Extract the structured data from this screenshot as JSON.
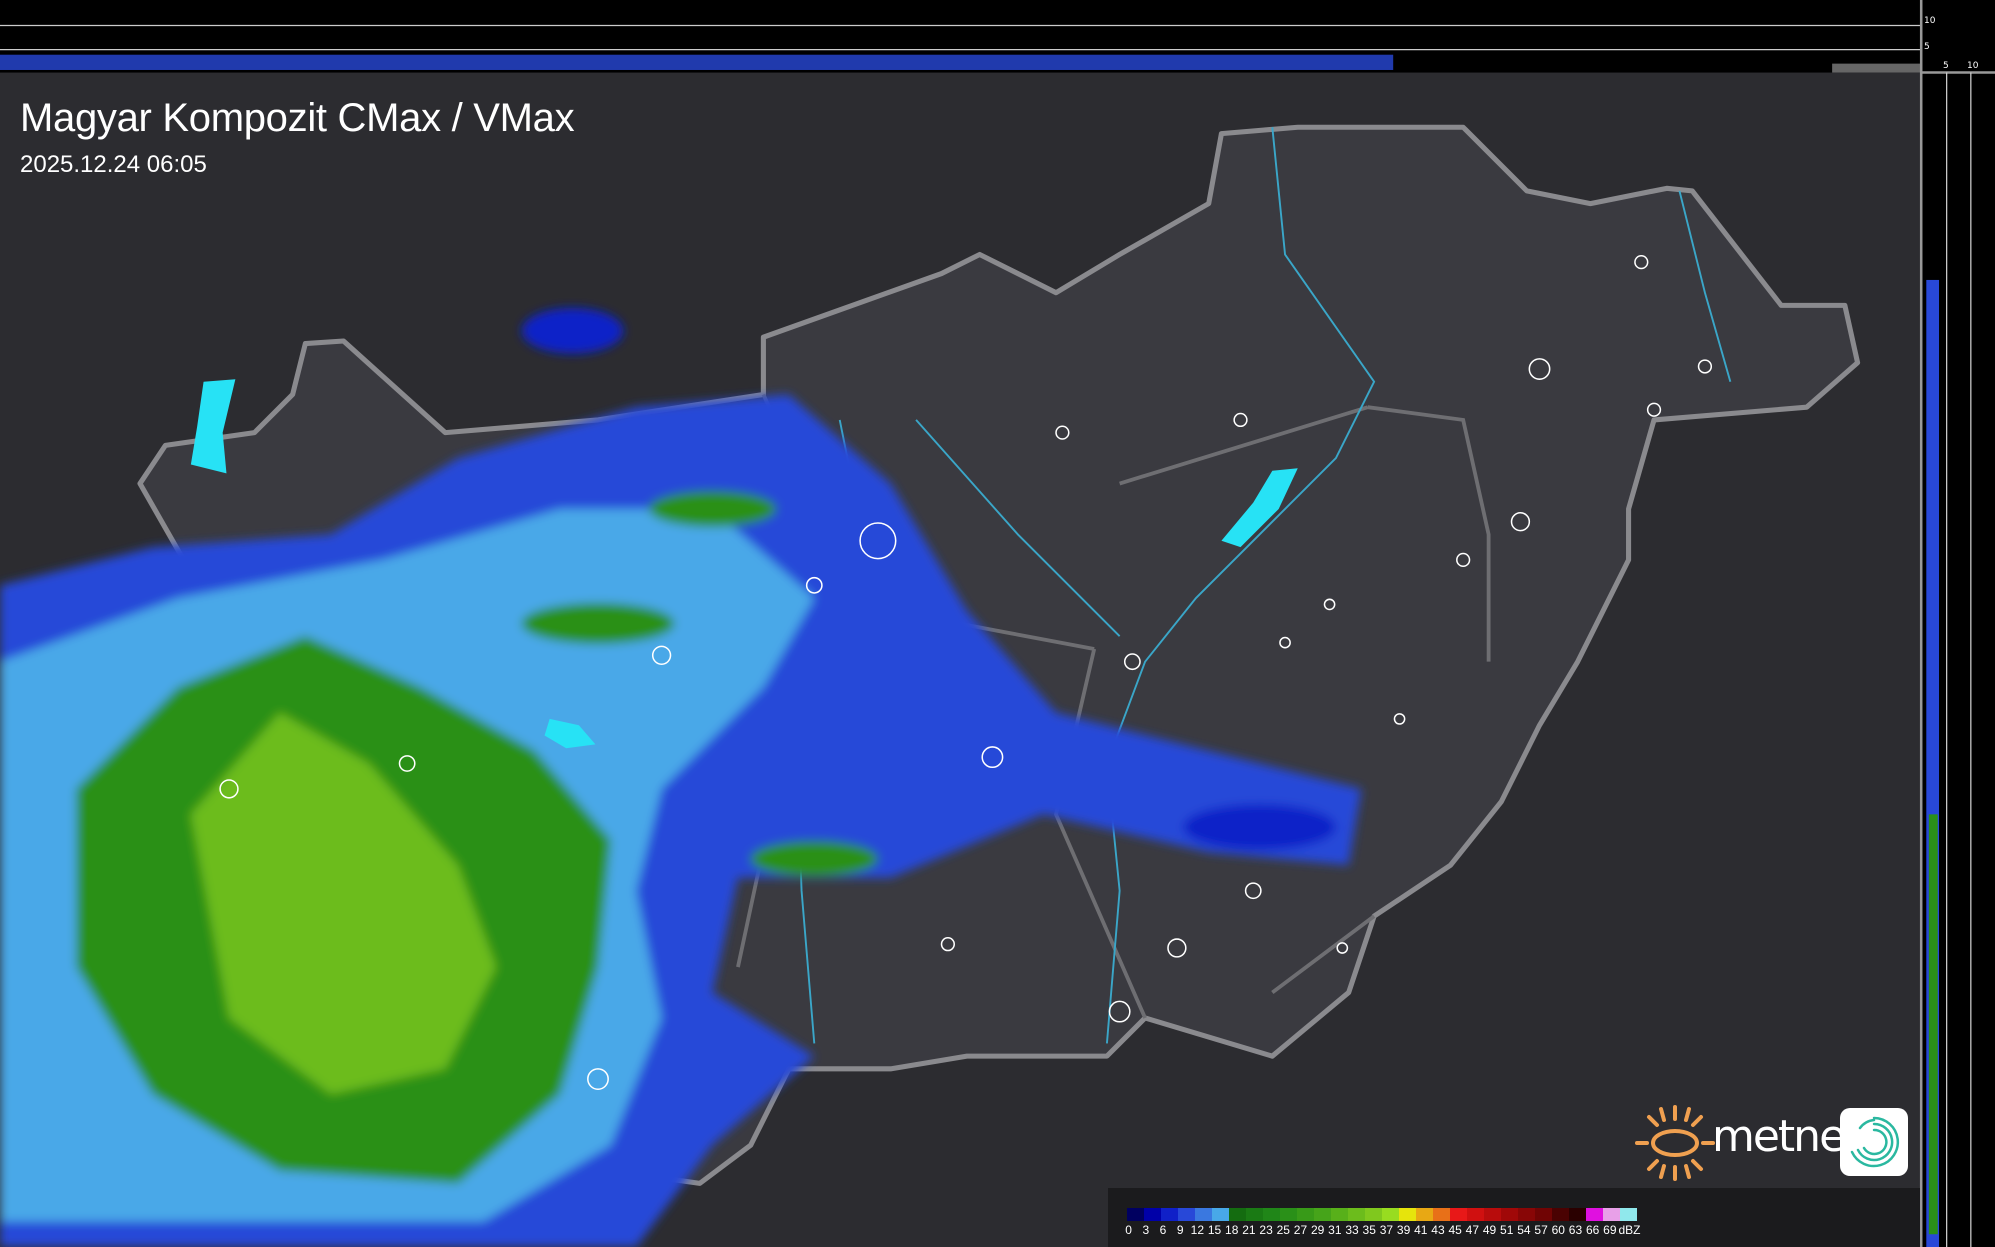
{
  "title": "Magyar Kompozit CMax / VMax",
  "timestamp": "2025.12.24 06:05",
  "side_axis": {
    "top_ticks": [
      "10",
      "5"
    ],
    "right_ticks": [
      "5",
      "10"
    ]
  },
  "logo": {
    "brand": "metnet"
  },
  "colors": {
    "background": "#2c2c30",
    "country_fill": "#3a3a40",
    "border": "#8a8a8e",
    "rivers": "#3aa6c8",
    "lakes": "#27e2f5",
    "cities": "#ffffff"
  },
  "legend": {
    "unit": "dBZ",
    "entries": [
      {
        "label": "0",
        "color": "#000060"
      },
      {
        "label": "3",
        "color": "#0000a8"
      },
      {
        "label": "6",
        "color": "#1020c8"
      },
      {
        "label": "9",
        "color": "#2848d8"
      },
      {
        "label": "12",
        "color": "#3a78e0"
      },
      {
        "label": "15",
        "color": "#48a8e8"
      },
      {
        "label": "18",
        "color": "#146c10"
      },
      {
        "label": "21",
        "color": "#1a7a14"
      },
      {
        "label": "23",
        "color": "#208618"
      },
      {
        "label": "25",
        "color": "#2a9018"
      },
      {
        "label": "27",
        "color": "#389a18"
      },
      {
        "label": "29",
        "color": "#46a41a"
      },
      {
        "label": "31",
        "color": "#58b01a"
      },
      {
        "label": "33",
        "color": "#6cbc1c"
      },
      {
        "label": "35",
        "color": "#80c81e"
      },
      {
        "label": "37",
        "color": "#98dc20"
      },
      {
        "label": "39",
        "color": "#e6e40c"
      },
      {
        "label": "41",
        "color": "#e8a814"
      },
      {
        "label": "43",
        "color": "#e87018"
      },
      {
        "label": "45",
        "color": "#e81818"
      },
      {
        "label": "47",
        "color": "#d01010"
      },
      {
        "label": "49",
        "color": "#b80c0c"
      },
      {
        "label": "51",
        "color": "#a00808"
      },
      {
        "label": "54",
        "color": "#880606"
      },
      {
        "label": "57",
        "color": "#700404"
      },
      {
        "label": "60",
        "color": "#4a0202"
      },
      {
        "label": "63",
        "color": "#2a0000"
      },
      {
        "label": "66",
        "color": "#e010e0"
      },
      {
        "label": "69",
        "color": "#e8a0e8"
      },
      {
        "label": "",
        "color": "#90e8ec"
      }
    ]
  }
}
